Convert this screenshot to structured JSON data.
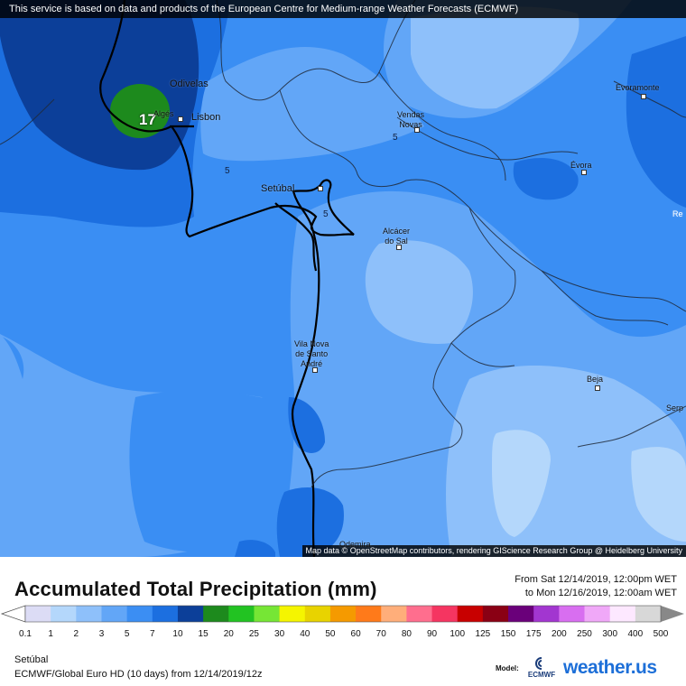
{
  "banner": "This service is based on data and products of the European Centre for Medium-range Weather Forecasts (ECMWF)",
  "attribution": "Map data © OpenStreetMap contributors, rendering GIScience Research Group @ Heidelberg University",
  "map": {
    "cities": {
      "odivelas": "Odivelas",
      "alges": "Algés",
      "lisbon": "Lisbon",
      "vendas_novas": "Vendas\nNovas",
      "evoramonte": "Evoramonte",
      "evora": "Évora",
      "setubal": "Setúbal",
      "alcacer": "Alcácer\ndo Sal",
      "vila_nova": "Vila Nova\nde Santo\nAndré",
      "beja": "Beja",
      "serpa": "Serp",
      "re": "Re",
      "odemira": "Odemira"
    },
    "contour_labels": {
      "c1": "5",
      "c2": "5",
      "c3": "5"
    },
    "max_value": "17"
  },
  "title": "Accumulated Total Precipitation (mm)",
  "time_range": {
    "from": "From Sat 12/14/2019, 12:00pm WET",
    "to": "to Mon 12/16/2019, 12:00am WET"
  },
  "scale": {
    "labels": [
      "0.1",
      "1",
      "2",
      "3",
      "5",
      "7",
      "10",
      "15",
      "20",
      "25",
      "30",
      "40",
      "50",
      "60",
      "70",
      "80",
      "90",
      "100",
      "125",
      "150",
      "175",
      "200",
      "250",
      "300",
      "400",
      "500"
    ],
    "colors": [
      "#dcdcf5",
      "#b4d7fb",
      "#8ec0fa",
      "#62a6f7",
      "#3b8ef3",
      "#1c6fe0",
      "#0c3f99",
      "#1d8a1d",
      "#22c322",
      "#76e635",
      "#f5f500",
      "#e8d300",
      "#f59a00",
      "#ff7a1a",
      "#ffae7a",
      "#ff6e8e",
      "#f53561",
      "#c80000",
      "#8a0014",
      "#6a007a",
      "#a236d0",
      "#d86ef0",
      "#f0a8f8",
      "#fde8ff",
      "#d8d8d8"
    ]
  },
  "footer": {
    "location": "Setúbal",
    "model_line": "ECMWF/Global Euro HD (10 days)  from  12/14/2019/12z",
    "model_label": "Model:",
    "ecmwf": "ECMWF",
    "brand": "weather.us"
  }
}
